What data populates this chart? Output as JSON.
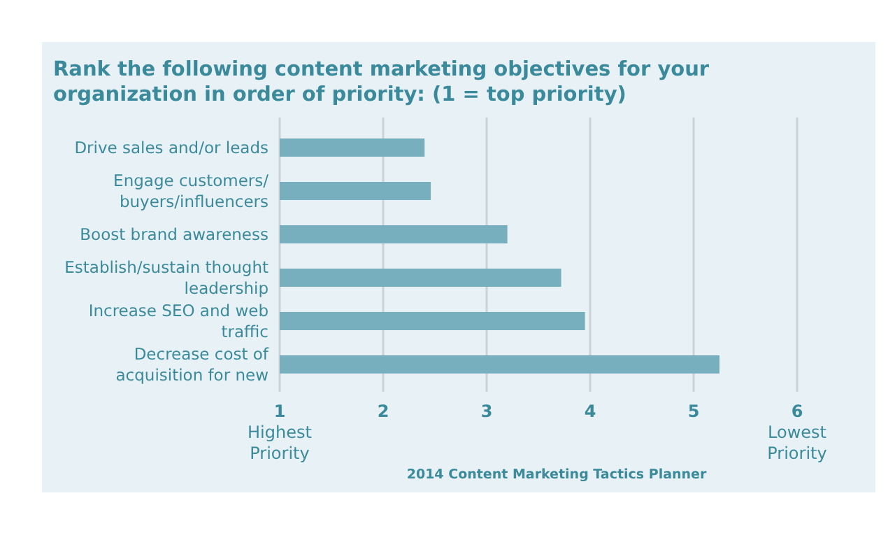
{
  "chart_data": {
    "type": "bar",
    "orientation": "horizontal",
    "title": "Rank the following content marketing objectives for your organization in order of priority: (1 = top priority)",
    "categories": [
      "Drive sales and/or leads",
      "Engage customers/ buyers/influencers",
      "Boost brand awareness",
      "Establish/sustain thought leadership",
      "Increase SEO and web traffic",
      "Decrease cost of acquisition for new"
    ],
    "values": [
      2.4,
      2.46,
      3.2,
      3.72,
      3.95,
      5.25
    ],
    "color": "#78afbf",
    "xlim": [
      1,
      6
    ],
    "xticks": [
      {
        "value": 1,
        "label": "1\nHighest\nPriority"
      },
      2,
      3,
      4,
      5,
      {
        "value": 6,
        "label": "6\nLowest\nPriority"
      }
    ],
    "grid": "x",
    "annotations": [
      "2014 Content Marketing Tactics Planner"
    ]
  }
}
